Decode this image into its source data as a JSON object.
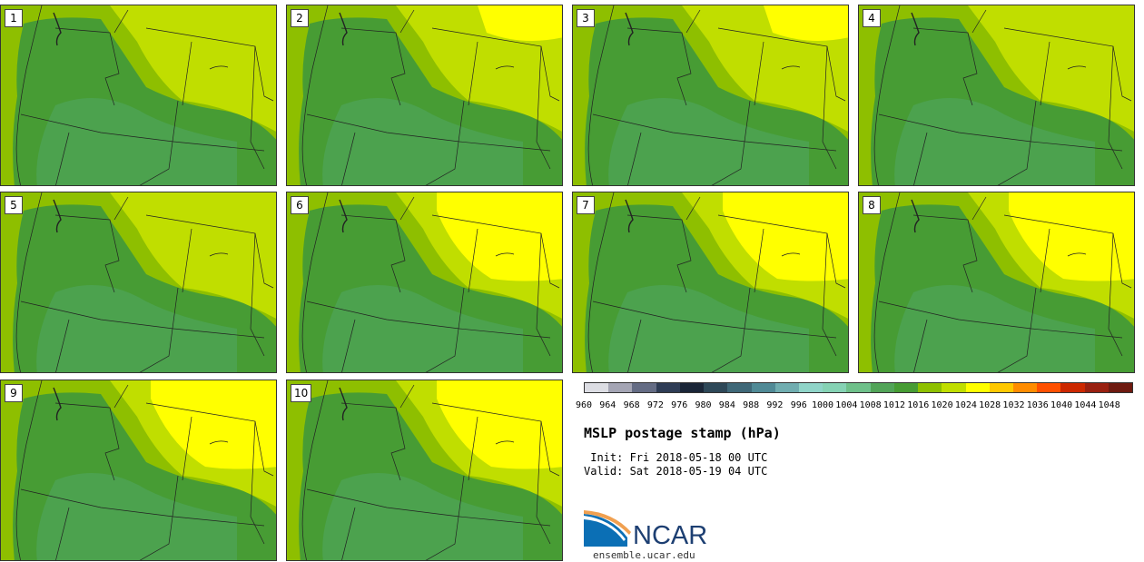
{
  "panels": [
    {
      "label": "1",
      "high": "low"
    },
    {
      "label": "2",
      "high": "mid"
    },
    {
      "label": "3",
      "high": "mid"
    },
    {
      "label": "4",
      "high": "low"
    },
    {
      "label": "5",
      "high": "low"
    },
    {
      "label": "6",
      "high": "high"
    },
    {
      "label": "7",
      "high": "high"
    },
    {
      "label": "8",
      "high": "high"
    },
    {
      "label": "9",
      "high": "high"
    },
    {
      "label": "10",
      "high": "high"
    }
  ],
  "colorbar": {
    "ticks": [
      "960",
      "964",
      "968",
      "972",
      "976",
      "980",
      "984",
      "988",
      "992",
      "996",
      "1000",
      "1004",
      "1008",
      "1012",
      "1016",
      "1020",
      "1024",
      "1028",
      "1032",
      "1036",
      "1040",
      "1044",
      "1048"
    ],
    "colors": [
      "#dcdde3",
      "#a4a5b4",
      "#646c84",
      "#2e3c55",
      "#1a2638",
      "#2e4858",
      "#3f6878",
      "#508a96",
      "#70adb0",
      "#8fd4c8",
      "#85d2b4",
      "#6ec08a",
      "#52a458",
      "#479c34",
      "#8ec000",
      "#c0de00",
      "#ffff00",
      "#ffc800",
      "#ff8c00",
      "#ff5000",
      "#cc2800",
      "#992010",
      "#6e1a10"
    ]
  },
  "title": "MSLP postage stamp (hPa)",
  "init": " Init: Fri 2018-05-18 00 UTC",
  "valid": "Valid: Sat 2018-05-19 04 UTC",
  "logo": {
    "wordmark": "NCAR",
    "site": "ensemble.ucar.edu"
  },
  "map_colors": {
    "ocean": "#8ebf00",
    "land_low": "#479c34",
    "land_deep": "#4fa55a",
    "mid": "#c0de00",
    "high": "#ffff00",
    "border": "#222222"
  }
}
